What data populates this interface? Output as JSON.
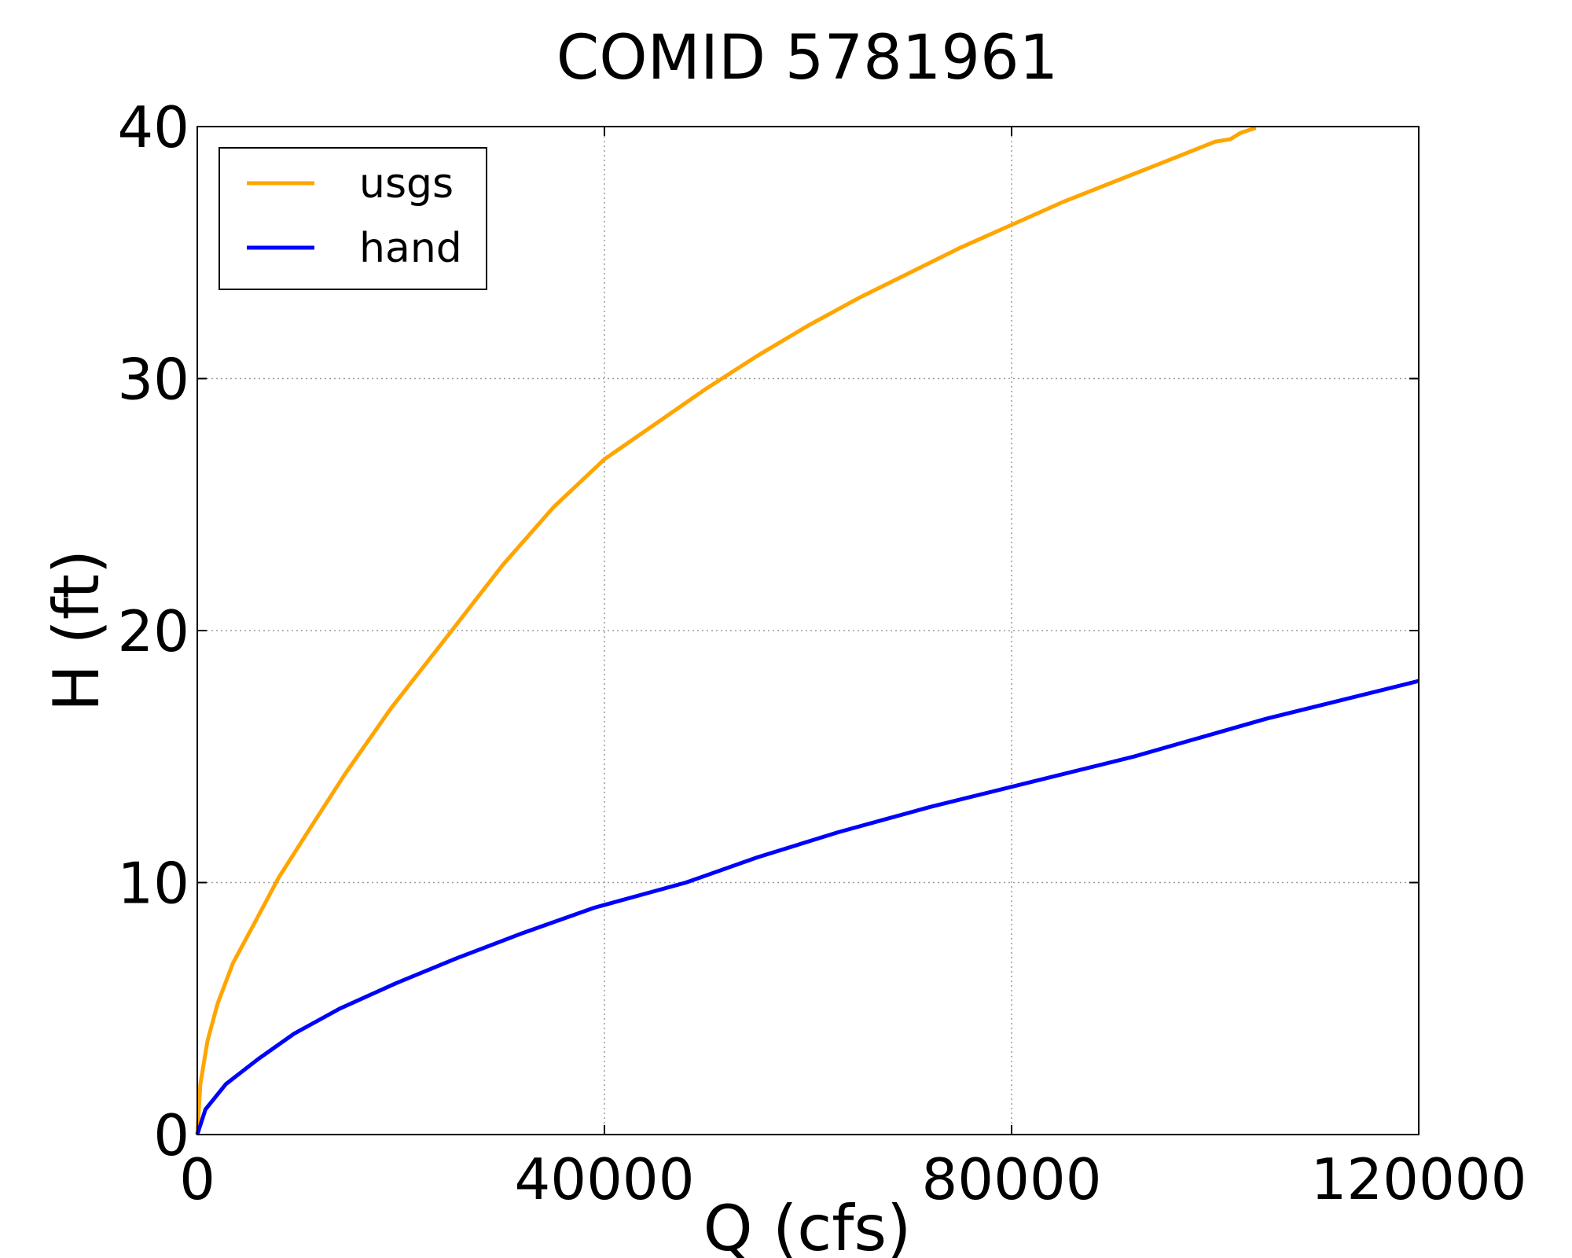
{
  "chart_data": {
    "type": "line",
    "title": "COMID 5781961",
    "xlabel": "Q (cfs)",
    "ylabel": "H (ft)",
    "xlim": [
      0,
      120000
    ],
    "ylim": [
      0,
      40
    ],
    "xticks": [
      0,
      40000,
      80000,
      120000
    ],
    "xtick_labels": [
      "0",
      "40000",
      "80000",
      "120000"
    ],
    "yticks": [
      0,
      10,
      20,
      30,
      40
    ],
    "ytick_labels": [
      "0",
      "10",
      "20",
      "30",
      "40"
    ],
    "grid": true,
    "legend_position": "top-left",
    "series": [
      {
        "name": "usgs",
        "color": "#FFA500",
        "x": [
          0,
          300,
          1000,
          2000,
          3500,
          5500,
          8000,
          11000,
          14500,
          19000,
          25000,
          30000,
          35000,
          40000,
          45000,
          50000,
          55000,
          60000,
          65000,
          70000,
          75000,
          80000,
          85000,
          90000,
          95000,
          100000,
          101500,
          102500,
          104000
        ],
        "y": [
          0,
          2.0,
          3.7,
          5.2,
          6.8,
          8.3,
          10.2,
          12.1,
          14.3,
          16.9,
          20.0,
          22.6,
          24.9,
          26.8,
          28.2,
          29.6,
          30.9,
          32.1,
          33.2,
          34.2,
          35.2,
          36.1,
          37.0,
          37.8,
          38.6,
          39.4,
          39.5,
          39.75,
          39.95
        ]
      },
      {
        "name": "hand",
        "color": "#0000FF",
        "x": [
          0,
          800,
          2800,
          6000,
          9500,
          14000,
          19500,
          25500,
          32000,
          39000,
          48000,
          55000,
          63000,
          72000,
          82000,
          92000,
          105000,
          120000
        ],
        "y": [
          0,
          1.0,
          2.0,
          3.0,
          4.0,
          5.0,
          6.0,
          7.0,
          8.0,
          9.0,
          10.0,
          11.0,
          12.0,
          13.0,
          14.0,
          15.0,
          16.5,
          18.0
        ]
      }
    ]
  }
}
